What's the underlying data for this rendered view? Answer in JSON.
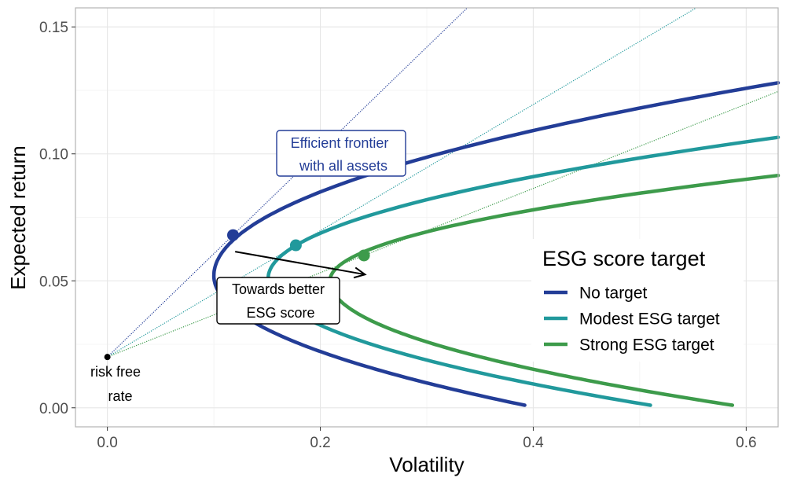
{
  "chart_data": {
    "type": "line",
    "title": "",
    "xlabel": "Volatility",
    "ylabel": "Expected return",
    "xlim": [
      -0.03,
      0.63
    ],
    "ylim": [
      -0.0075,
      0.1575
    ],
    "x_ticks": [
      "0.0",
      "0.2",
      "0.4",
      "0.6"
    ],
    "x_tick_values": [
      0.0,
      0.2,
      0.4,
      0.6
    ],
    "y_ticks": [
      "0.00",
      "0.05",
      "0.10",
      "0.15"
    ],
    "y_tick_values": [
      0.0,
      0.05,
      0.1,
      0.15
    ],
    "grid": true,
    "legend": {
      "title": "ESG score target",
      "placement": "right",
      "entries": [
        "No target",
        "Modest ESG target",
        "Strong ESG target"
      ]
    },
    "series": [
      {
        "name": "No target",
        "color": "#233d97",
        "min_variance": {
          "x": 0.1,
          "y": 0.052
        },
        "upper_end": {
          "x": 0.63,
          "y": 0.128
        },
        "lower_end": {
          "x": 0.392,
          "y": 0.001
        },
        "tangency": {
          "x": 0.118,
          "y": 0.068
        },
        "cml_slope": 0.4068
      },
      {
        "name": "Modest ESG target",
        "color": "#21999c",
        "min_variance": {
          "x": 0.151,
          "y": 0.051
        },
        "upper_end": {
          "x": 0.63,
          "y": 0.1065
        },
        "lower_end": {
          "x": 0.51,
          "y": 0.001
        },
        "tangency": {
          "x": 0.177,
          "y": 0.064
        },
        "cml_slope": 0.2486
      },
      {
        "name": "Strong ESG target",
        "color": "#3d9b4b",
        "min_variance": {
          "x": 0.209,
          "y": 0.05
        },
        "upper_end": {
          "x": 0.63,
          "y": 0.0915
        },
        "lower_end": {
          "x": 0.587,
          "y": 0.001
        },
        "tangency": {
          "x": 0.241,
          "y": 0.06
        },
        "cml_slope": 0.166
      }
    ],
    "risk_free": {
      "x": 0.0,
      "y": 0.02,
      "label_line1": "risk free",
      "label_line2": "rate"
    },
    "annotations": {
      "frontier_label": {
        "line1": "Efficient frontier",
        "line2": "with all assets",
        "color": "#233d97"
      },
      "arrow_label": {
        "line1": "Towards better",
        "line2": "ESG score"
      },
      "arrow": {
        "from": {
          "x": 0.12,
          "y": 0.0615
        },
        "to": {
          "x": 0.242,
          "y": 0.0525
        }
      }
    }
  }
}
